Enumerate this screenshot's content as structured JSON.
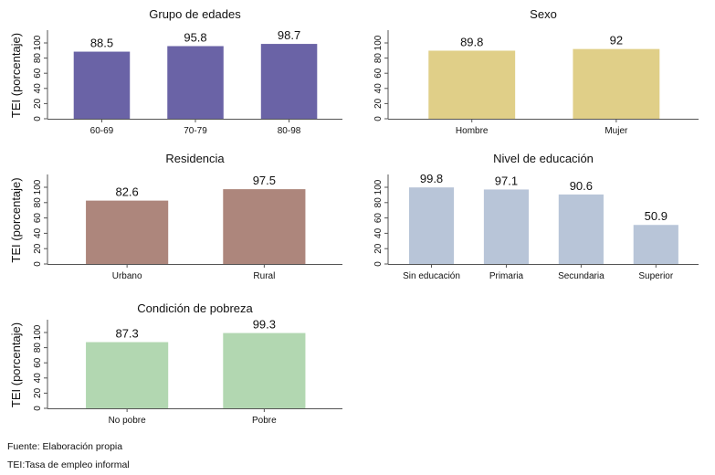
{
  "chart_data": [
    {
      "type": "bar",
      "title": "Grupo de edades",
      "ylabel": "TEI (porcentaje)",
      "ylim": [
        0,
        100
      ],
      "yticks": [
        0,
        20,
        40,
        60,
        80,
        100
      ],
      "categories": [
        "60-69",
        "70-79",
        "80-98"
      ],
      "values": [
        88.5,
        95.8,
        98.7
      ],
      "color": "#6a63a6"
    },
    {
      "type": "bar",
      "title": "Sexo",
      "ylabel": "",
      "ylim": [
        0,
        100
      ],
      "yticks": [
        0,
        20,
        40,
        60,
        80,
        100
      ],
      "categories": [
        "Hombre",
        "Mujer"
      ],
      "values": [
        89.8,
        92
      ],
      "color": "#e0cf88"
    },
    {
      "type": "bar",
      "title": "Residencia",
      "ylabel": "TEI (porcentaje)",
      "ylim": [
        0,
        100
      ],
      "yticks": [
        0,
        20,
        40,
        60,
        80,
        100
      ],
      "categories": [
        "Urbano",
        "Rural"
      ],
      "values": [
        82.6,
        97.5
      ],
      "color": "#ad867c"
    },
    {
      "type": "bar",
      "title": "Nivel de educación",
      "ylabel": "",
      "ylim": [
        0,
        100
      ],
      "yticks": [
        0,
        20,
        40,
        60,
        80,
        100
      ],
      "categories": [
        "Sin educación",
        "Primaria",
        "Secundaria",
        "Superior"
      ],
      "values": [
        99.8,
        97.1,
        90.6,
        50.9
      ],
      "color": "#b8c5d8"
    },
    {
      "type": "bar",
      "title": "Condición de pobreza",
      "ylabel": "TEI (porcentaje)",
      "ylim": [
        0,
        100
      ],
      "yticks": [
        0,
        20,
        40,
        60,
        80,
        100
      ],
      "categories": [
        "No pobre",
        "Pobre"
      ],
      "values": [
        87.3,
        99.3
      ],
      "color": "#b2d7b1"
    }
  ],
  "notes": {
    "source": "Fuente: Elaboración propia",
    "abbrev": "TEI:Tasa de empleo informal"
  }
}
